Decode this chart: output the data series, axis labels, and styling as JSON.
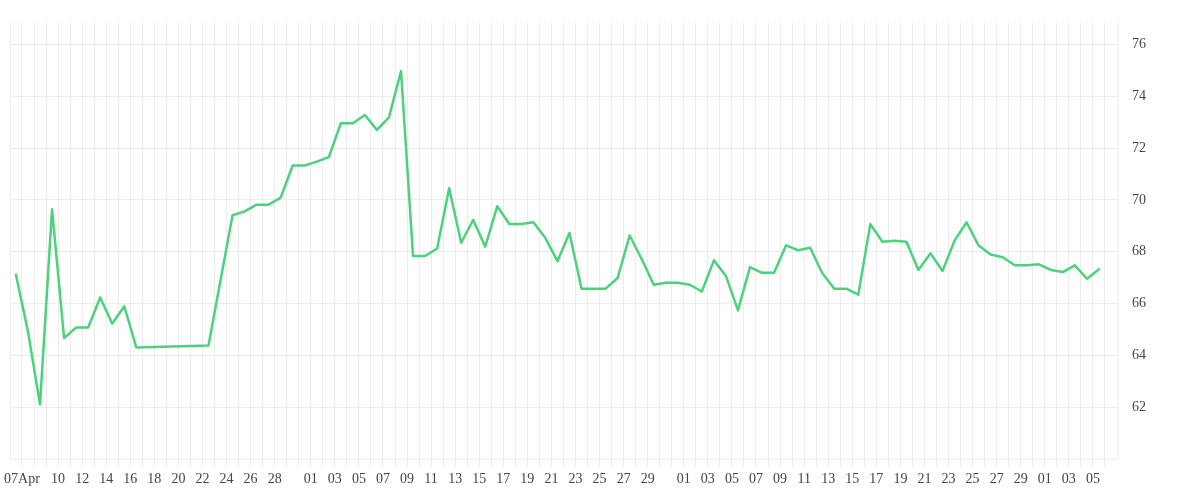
{
  "chart_data": {
    "type": "line",
    "grid": true,
    "line_style": "solid",
    "xlim": [
      "--04-06T01:00",
      "--07-07T02:00"
    ],
    "ylim": [
      60,
      76.85
    ],
    "yticks": [
      62,
      64,
      66,
      68,
      70,
      72,
      74,
      76
    ],
    "xticks": [
      {
        "value": "--04-07",
        "label": "07Apr"
      },
      {
        "value": "--04-08",
        "label": null
      },
      {
        "value": "--04-09",
        "label": null
      },
      {
        "value": "--04-10",
        "label": "10"
      },
      {
        "value": "--04-11",
        "label": null
      },
      {
        "value": "--04-12",
        "label": "12"
      },
      {
        "value": "--04-13",
        "label": null
      },
      {
        "value": "--04-14",
        "label": "14"
      },
      {
        "value": "--04-15",
        "label": null
      },
      {
        "value": "--04-16",
        "label": "16"
      },
      {
        "value": "--04-17",
        "label": null
      },
      {
        "value": "--04-18",
        "label": "18"
      },
      {
        "value": "--04-19",
        "label": null
      },
      {
        "value": "--04-20",
        "label": "20"
      },
      {
        "value": "--04-21",
        "label": null
      },
      {
        "value": "--04-22",
        "label": "22"
      },
      {
        "value": "--04-23",
        "label": null
      },
      {
        "value": "--04-24",
        "label": "24"
      },
      {
        "value": "--04-25",
        "label": null
      },
      {
        "value": "--04-26",
        "label": "26"
      },
      {
        "value": "--04-27",
        "label": null
      },
      {
        "value": "--04-28",
        "label": "28"
      },
      {
        "value": "--04-29",
        "label": null
      },
      {
        "value": "--04-30",
        "label": null
      },
      {
        "value": "--05-01",
        "label": "01"
      },
      {
        "value": "--05-02",
        "label": null
      },
      {
        "value": "--05-03",
        "label": "03"
      },
      {
        "value": "--05-04",
        "label": null
      },
      {
        "value": "--05-05",
        "label": "05"
      },
      {
        "value": "--05-06",
        "label": null
      },
      {
        "value": "--05-07",
        "label": "07"
      },
      {
        "value": "--05-08",
        "label": null
      },
      {
        "value": "--05-09",
        "label": "09"
      },
      {
        "value": "--05-10",
        "label": null
      },
      {
        "value": "--05-11",
        "label": "11"
      },
      {
        "value": "--05-12",
        "label": null
      },
      {
        "value": "--05-13",
        "label": "13"
      },
      {
        "value": "--05-14",
        "label": null
      },
      {
        "value": "--05-15",
        "label": "15"
      },
      {
        "value": "--05-16",
        "label": null
      },
      {
        "value": "--05-17",
        "label": "17"
      },
      {
        "value": "--05-18",
        "label": null
      },
      {
        "value": "--05-19",
        "label": "19"
      },
      {
        "value": "--05-20",
        "label": null
      },
      {
        "value": "--05-21",
        "label": "21"
      },
      {
        "value": "--05-22",
        "label": null
      },
      {
        "value": "--05-23",
        "label": "23"
      },
      {
        "value": "--05-24",
        "label": null
      },
      {
        "value": "--05-25",
        "label": "25"
      },
      {
        "value": "--05-26",
        "label": null
      },
      {
        "value": "--05-27",
        "label": "27"
      },
      {
        "value": "--05-28",
        "label": null
      },
      {
        "value": "--05-29",
        "label": "29"
      },
      {
        "value": "--05-30",
        "label": null
      },
      {
        "value": "--05-31",
        "label": null
      },
      {
        "value": "--06-01",
        "label": "01"
      },
      {
        "value": "--06-02",
        "label": null
      },
      {
        "value": "--06-03",
        "label": "03"
      },
      {
        "value": "--06-04",
        "label": null
      },
      {
        "value": "--06-05",
        "label": "05"
      },
      {
        "value": "--06-06",
        "label": null
      },
      {
        "value": "--06-07",
        "label": "07"
      },
      {
        "value": "--06-08",
        "label": null
      },
      {
        "value": "--06-09",
        "label": "09"
      },
      {
        "value": "--06-10",
        "label": null
      },
      {
        "value": "--06-11",
        "label": "11"
      },
      {
        "value": "--06-12",
        "label": null
      },
      {
        "value": "--06-13",
        "label": "13"
      },
      {
        "value": "--06-14",
        "label": null
      },
      {
        "value": "--06-15",
        "label": "15"
      },
      {
        "value": "--06-16",
        "label": null
      },
      {
        "value": "--06-17",
        "label": "17"
      },
      {
        "value": "--06-18",
        "label": null
      },
      {
        "value": "--06-19",
        "label": "19"
      },
      {
        "value": "--06-20",
        "label": null
      },
      {
        "value": "--06-21",
        "label": "21"
      },
      {
        "value": "--06-22",
        "label": null
      },
      {
        "value": "--06-23",
        "label": "23"
      },
      {
        "value": "--06-24",
        "label": null
      },
      {
        "value": "--06-25",
        "label": "25"
      },
      {
        "value": "--06-26",
        "label": null
      },
      {
        "value": "--06-27",
        "label": "27"
      },
      {
        "value": "--06-28",
        "label": null
      },
      {
        "value": "--06-29",
        "label": "29"
      },
      {
        "value": "--06-30",
        "label": null
      },
      {
        "value": "--07-01",
        "label": "01"
      },
      {
        "value": "--07-02",
        "label": null
      },
      {
        "value": "--07-03",
        "label": "03"
      },
      {
        "value": "--07-04",
        "label": null
      },
      {
        "value": "--07-05",
        "label": "05"
      },
      {
        "value": "--07-06",
        "label": null
      }
    ],
    "x": [
      "--04-06T12:00",
      "--04-07T12:00",
      "--04-08T12:00",
      "--04-09T12:00",
      "--04-10T12:00",
      "--04-11T12:00",
      "--04-12T12:00",
      "--04-13T12:00",
      "--04-14T12:00",
      "--04-15T12:00",
      "--04-16T12:00",
      "--04-22T12:00",
      "--04-24T12:00",
      "--04-25T12:00",
      "--04-26T12:00",
      "--04-27T12:00",
      "--04-28T12:00",
      "--04-29T12:00",
      "--04-30T12:00",
      "--05-01T12:00",
      "--05-02T12:00",
      "--05-03T12:00",
      "--05-04T12:00",
      "--05-05T12:00",
      "--05-06T12:00",
      "--05-07T12:00",
      "--05-08T12:00",
      "--05-09T12:00",
      "--05-10T12:00",
      "--05-11T12:00",
      "--05-12T12:00",
      "--05-13T12:00",
      "--05-14T12:00",
      "--05-15T12:00",
      "--05-16T12:00",
      "--05-17T12:00",
      "--05-18T12:00",
      "--05-19T12:00",
      "--05-20T12:00",
      "--05-21T12:00",
      "--05-22T12:00",
      "--05-23T12:00",
      "--05-24T12:00",
      "--05-25T12:00",
      "--05-26T12:00",
      "--05-27T12:00",
      "--05-28T12:00",
      "--05-29T12:00",
      "--05-30T12:00",
      "--05-31T12:00",
      "--06-01T12:00",
      "--06-02T12:00",
      "--06-03T12:00",
      "--06-04T12:00",
      "--06-05T12:00",
      "--06-06T12:00",
      "--06-07T12:00",
      "--06-08T12:00",
      "--06-09T12:00",
      "--06-10T12:00",
      "--06-11T12:00",
      "--06-12T12:00",
      "--06-13T12:00",
      "--06-14T12:00",
      "--06-15T12:00",
      "--06-16T12:00",
      "--06-17T12:00",
      "--06-18T12:00",
      "--06-19T12:00",
      "--06-20T12:00",
      "--06-21T12:00",
      "--06-22T12:00",
      "--06-23T12:00",
      "--06-24T12:00",
      "--06-25T12:00",
      "--06-26T12:00",
      "--06-27T12:00",
      "--06-28T12:00",
      "--06-29T12:00",
      "--06-30T12:00",
      "--07-01T12:00",
      "--07-02T12:00",
      "--07-03T12:00",
      "--07-04T12:00",
      "--07-05T12:00"
    ],
    "series": [
      {
        "color": "#4cd27c",
        "values": [
          67.12,
          64.92,
          62.11,
          69.64,
          64.67,
          65.08,
          65.08,
          66.24,
          65.23,
          65.9,
          64.31,
          64.39,
          69.41,
          69.56,
          69.82,
          69.82,
          70.09,
          71.33,
          71.33,
          71.48,
          71.65,
          72.96,
          72.96,
          73.28,
          72.7,
          73.19,
          74.97,
          67.84,
          67.84,
          68.13,
          70.45,
          68.35,
          69.23,
          68.2,
          69.76,
          69.07,
          69.07,
          69.14,
          68.53,
          67.64,
          68.73,
          66.58,
          66.58,
          66.58,
          66.99,
          68.63,
          67.72,
          66.73,
          66.81,
          66.81,
          66.73,
          66.47,
          67.67,
          67.07,
          65.74,
          67.41,
          67.19,
          67.19,
          68.25,
          68.06,
          68.16,
          67.18,
          66.58,
          66.58,
          66.35,
          69.07,
          68.39,
          68.43,
          68.39,
          67.3,
          67.94,
          67.26,
          68.43,
          69.14,
          68.24,
          67.9,
          67.79,
          67.48,
          67.48,
          67.52,
          67.3,
          67.22,
          67.48,
          66.96,
          67.33
        ]
      }
    ]
  }
}
